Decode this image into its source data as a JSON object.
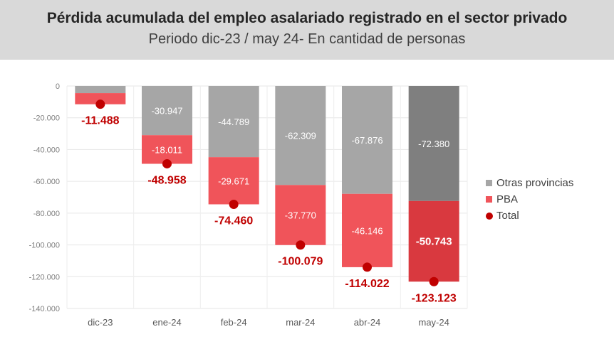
{
  "header": {
    "title": "Pérdida acumulada del empleo asalariado registrado en el sector privado",
    "subtitle": "Periodo dic-23 / may 24- En cantidad de personas"
  },
  "colors": {
    "otras": "#a6a6a6",
    "otras_last": "#7f7f7f",
    "pba": "#f0545a",
    "pba_last": "#d9393f",
    "total": "#c00000",
    "header_bg": "#d9d9d9"
  },
  "legend": {
    "otras": "Otras provincias",
    "pba": "PBA",
    "total": "Total"
  },
  "chart_data": {
    "type": "bar",
    "stacked": true,
    "categories": [
      "dic-23",
      "ene-24",
      "feb-24",
      "mar-24",
      "abr-24",
      "may-24"
    ],
    "series": [
      {
        "name": "Otras provincias",
        "values": [
          -4500,
          -30947,
          -44789,
          -62309,
          -67876,
          -72380
        ],
        "labels": [
          "",
          "-30.947",
          "-44.789",
          "-62.309",
          "-67.876",
          "-72.380"
        ]
      },
      {
        "name": "PBA",
        "values": [
          -6988,
          -18011,
          -29671,
          -37770,
          -46146,
          -50743
        ],
        "labels": [
          "",
          "-18.011",
          "-29.671",
          "-37.770",
          "-46.146",
          "-50.743"
        ]
      },
      {
        "name": "Total",
        "values": [
          -11488,
          -48958,
          -74460,
          -100079,
          -114022,
          -123123
        ],
        "labels": [
          "-11.488",
          "-48.958",
          "-74.460",
          "-100.079",
          "-114.022",
          "-123.123"
        ]
      }
    ],
    "yticks": [
      "0",
      "-20.000",
      "-40.000",
      "-60.000",
      "-80.000",
      "-100.000",
      "-120.000",
      "-140.000"
    ],
    "ylim": [
      -140000,
      0
    ],
    "grid": true,
    "legend_position": "right"
  }
}
